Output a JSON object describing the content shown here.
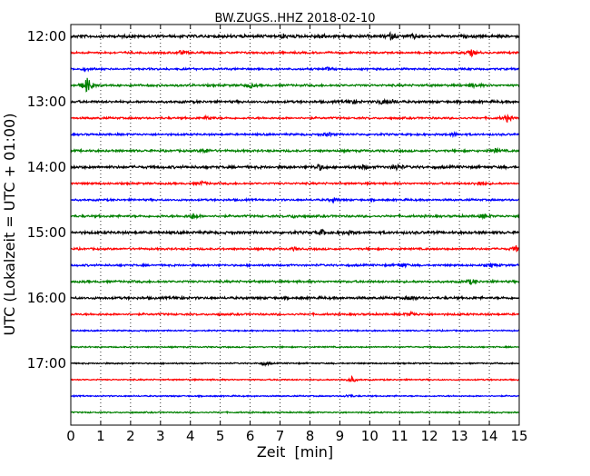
{
  "chart_data": {
    "type": "line",
    "title": "BW.ZUGS..HHZ 2018-02-10",
    "xlabel": "Zeit  [min]",
    "ylabel": "UTC (Lokalzeit = UTC + 01:00)",
    "xlim": [
      0,
      15
    ],
    "x_ticks": [
      "0",
      "1",
      "2",
      "3",
      "4",
      "5",
      "6",
      "7",
      "8",
      "9",
      "10",
      "11",
      "12",
      "13",
      "14",
      "15"
    ],
    "y_ticks": [
      "12:00",
      "13:00",
      "14:00",
      "15:00",
      "16:00",
      "17:00"
    ],
    "grid": "vertical dotted",
    "color_cycle": [
      "#000000",
      "#ff0000",
      "#0000ff",
      "#008000"
    ],
    "series": [
      {
        "start": "12:00",
        "color": "#000000",
        "amplitude": 1.3,
        "events": [
          [
            7.1,
            2.0
          ],
          [
            8.4,
            2.5
          ],
          [
            10.7,
            2.8
          ],
          [
            11.5,
            1.8
          ]
        ]
      },
      {
        "start": "12:15",
        "color": "#ff0000",
        "amplitude": 0.9,
        "events": [
          [
            3.7,
            2.4
          ],
          [
            13.4,
            3.5
          ]
        ]
      },
      {
        "start": "12:30",
        "color": "#0000ff",
        "amplitude": 0.9,
        "events": [
          [
            0.5,
            1.5
          ],
          [
            8.6,
            1.5
          ]
        ]
      },
      {
        "start": "12:45",
        "color": "#008000",
        "amplitude": 1.0,
        "events": [
          [
            0.55,
            9.0
          ],
          [
            6.0,
            2.5
          ],
          [
            13.5,
            2.5
          ]
        ]
      },
      {
        "start": "13:00",
        "color": "#000000",
        "amplitude": 1.1,
        "events": [
          [
            9.4,
            3.0
          ],
          [
            10.4,
            2.6
          ],
          [
            10.8,
            2.0
          ]
        ]
      },
      {
        "start": "13:15",
        "color": "#ff0000",
        "amplitude": 0.9,
        "events": [
          [
            4.6,
            2.0
          ],
          [
            14.6,
            3.5
          ]
        ]
      },
      {
        "start": "13:30",
        "color": "#0000ff",
        "amplitude": 0.9,
        "events": [
          [
            8.6,
            2.2
          ],
          [
            12.8,
            1.6
          ]
        ]
      },
      {
        "start": "13:45",
        "color": "#008000",
        "amplitude": 1.0,
        "events": [
          [
            4.5,
            2.5
          ],
          [
            14.2,
            2.2
          ]
        ]
      },
      {
        "start": "14:00",
        "color": "#000000",
        "amplitude": 1.2,
        "events": [
          [
            8.3,
            3.0
          ],
          [
            9.8,
            2.0
          ],
          [
            10.9,
            3.0
          ]
        ]
      },
      {
        "start": "14:15",
        "color": "#ff0000",
        "amplitude": 0.9,
        "events": [
          [
            4.4,
            2.0
          ],
          [
            13.7,
            3.0
          ]
        ]
      },
      {
        "start": "14:30",
        "color": "#0000ff",
        "amplitude": 0.9,
        "events": [
          [
            8.8,
            2.2
          ]
        ]
      },
      {
        "start": "14:45",
        "color": "#008000",
        "amplitude": 1.0,
        "events": [
          [
            4.1,
            3.0
          ],
          [
            7.5,
            1.6
          ],
          [
            13.8,
            2.2
          ]
        ]
      },
      {
        "start": "15:00",
        "color": "#000000",
        "amplitude": 1.2,
        "events": [
          [
            8.4,
            3.0
          ],
          [
            9.3,
            1.8
          ]
        ]
      },
      {
        "start": "15:15",
        "color": "#ff0000",
        "amplitude": 0.9,
        "events": [
          [
            14.9,
            3.0
          ],
          [
            7.5,
            1.6
          ]
        ]
      },
      {
        "start": "15:30",
        "color": "#0000ff",
        "amplitude": 0.9,
        "events": [
          [
            11.1,
            2.6
          ],
          [
            14.1,
            2.2
          ]
        ]
      },
      {
        "start": "15:45",
        "color": "#008000",
        "amplitude": 1.0,
        "events": [
          [
            13.4,
            2.6
          ]
        ]
      },
      {
        "start": "16:00",
        "color": "#000000",
        "amplitude": 1.1,
        "events": [
          [
            11.4,
            2.0
          ],
          [
            3.6,
            1.6
          ]
        ]
      },
      {
        "start": "16:15",
        "color": "#ff0000",
        "amplitude": 0.9,
        "events": [
          [
            11.4,
            2.4
          ]
        ]
      },
      {
        "start": "16:30",
        "color": "#0000ff",
        "amplitude": 0.6,
        "events": []
      },
      {
        "start": "16:45",
        "color": "#008000",
        "amplitude": 0.6,
        "events": []
      },
      {
        "start": "17:00",
        "color": "#000000",
        "amplitude": 0.6,
        "events": [
          [
            6.5,
            2.0
          ]
        ]
      },
      {
        "start": "17:15",
        "color": "#ff0000",
        "amplitude": 0.6,
        "events": [
          [
            9.4,
            3.0
          ]
        ]
      },
      {
        "start": "17:30",
        "color": "#0000ff",
        "amplitude": 0.6,
        "events": [
          [
            9.3,
            1.6
          ]
        ]
      },
      {
        "start": "17:45",
        "color": "#008000",
        "amplitude": 0.6,
        "events": []
      }
    ]
  }
}
